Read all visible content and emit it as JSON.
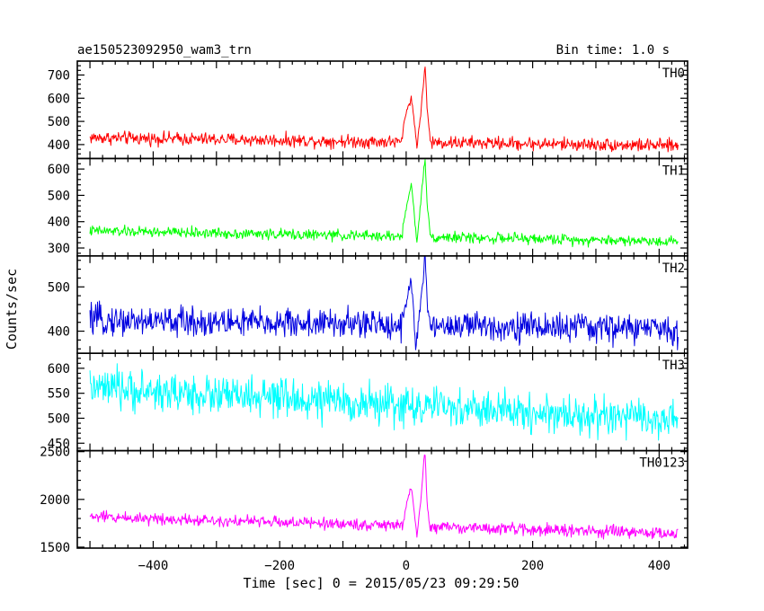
{
  "header": {
    "left_title": "ae150523092950_wam3_trn",
    "right_title": "Bin time: 1.0 s"
  },
  "chart_data": {
    "type": "line",
    "title": "ae150523092950_wam3_trn",
    "subtitle": "Bin time: 1.0 s",
    "xlabel": "Time [sec] 0 = 2015/05/23 09:29:50",
    "ylabel": "Counts/sec",
    "xlim": [
      -520,
      445
    ],
    "x_ticks": [
      -400,
      -200,
      0,
      200,
      400
    ],
    "x_tick_labels": [
      "−400",
      "−200",
      "0",
      "200",
      "400"
    ],
    "x_range_data": [
      -500,
      430
    ],
    "bin_seconds": 1.0,
    "grid": false,
    "legend": "none",
    "panels": [
      {
        "name": "TH0",
        "color": "#ff0000",
        "ylim": [
          340,
          760
        ],
        "y_ticks": [
          400,
          500,
          600,
          700
        ],
        "baseline_start": 430,
        "baseline_end": 395,
        "noise_amplitude": 25,
        "burst": [
          {
            "t": -5,
            "value": 470
          },
          {
            "t": 2,
            "value": 560
          },
          {
            "t": 8,
            "value": 600
          },
          {
            "t": 12,
            "value": 520
          },
          {
            "t": 17,
            "value": 390
          },
          {
            "t": 24,
            "value": 560
          },
          {
            "t": 28,
            "value": 680
          },
          {
            "t": 30,
            "value": 750
          },
          {
            "t": 33,
            "value": 560
          },
          {
            "t": 38,
            "value": 420
          }
        ]
      },
      {
        "name": "TH1",
        "color": "#00ff00",
        "ylim": [
          270,
          640
        ],
        "y_ticks": [
          300,
          400,
          500,
          600
        ],
        "baseline_start": 365,
        "baseline_end": 325,
        "noise_amplitude": 18,
        "burst": [
          {
            "t": -5,
            "value": 390
          },
          {
            "t": 2,
            "value": 470
          },
          {
            "t": 8,
            "value": 545
          },
          {
            "t": 12,
            "value": 450
          },
          {
            "t": 17,
            "value": 320
          },
          {
            "t": 24,
            "value": 500
          },
          {
            "t": 28,
            "value": 600
          },
          {
            "t": 30,
            "value": 630
          },
          {
            "t": 33,
            "value": 480
          },
          {
            "t": 38,
            "value": 350
          }
        ]
      },
      {
        "name": "TH2",
        "color": "#0000e0",
        "ylim": [
          350,
          570
        ],
        "y_ticks": [
          400,
          500
        ],
        "baseline_start": 425,
        "baseline_end": 405,
        "noise_amplitude": 30,
        "burst": [
          {
            "t": -5,
            "value": 430
          },
          {
            "t": 2,
            "value": 480
          },
          {
            "t": 8,
            "value": 520
          },
          {
            "t": 12,
            "value": 440
          },
          {
            "t": 15,
            "value": 355
          },
          {
            "t": 24,
            "value": 480
          },
          {
            "t": 28,
            "value": 540
          },
          {
            "t": 30,
            "value": 570
          },
          {
            "t": 33,
            "value": 460
          },
          {
            "t": 38,
            "value": 410
          }
        ]
      },
      {
        "name": "TH3",
        "color": "#00ffff",
        "ylim": [
          435,
          630
        ],
        "y_ticks": [
          450,
          500,
          550,
          600
        ],
        "baseline_start": 560,
        "baseline_end": 495,
        "noise_amplitude": 35,
        "burst": []
      },
      {
        "name": "TH0123",
        "color": "#ff00ff",
        "ylim": [
          1490,
          2510
        ],
        "y_ticks": [
          1500,
          2000,
          2500
        ],
        "y_tick_labels": [
          "1500",
          "2000",
          "2500"
        ],
        "baseline_start": 1820,
        "baseline_end": 1640,
        "noise_amplitude": 55,
        "burst": [
          {
            "t": -5,
            "value": 1750
          },
          {
            "t": 2,
            "value": 2000
          },
          {
            "t": 8,
            "value": 2130
          },
          {
            "t": 12,
            "value": 1900
          },
          {
            "t": 17,
            "value": 1600
          },
          {
            "t": 24,
            "value": 2050
          },
          {
            "t": 28,
            "value": 2400
          },
          {
            "t": 30,
            "value": 2500
          },
          {
            "t": 33,
            "value": 1950
          },
          {
            "t": 38,
            "value": 1680
          }
        ]
      }
    ]
  }
}
